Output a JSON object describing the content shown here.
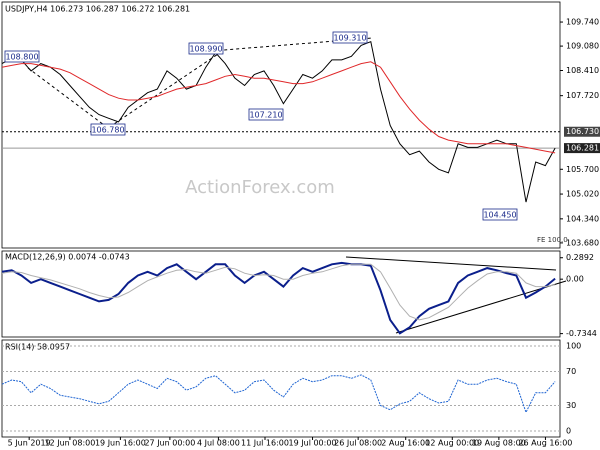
{
  "chart_data": [
    {
      "type": "line",
      "title": "USDJPY,H4 106.273 106.287 106.272 106.281",
      "x": [
        0,
        1,
        2,
        3,
        4,
        5,
        6,
        7,
        8,
        9,
        10,
        11,
        12,
        13,
        14,
        15,
        16,
        17,
        18,
        19,
        20,
        21,
        22,
        23,
        24,
        25,
        26,
        27,
        28,
        29,
        30,
        31,
        32,
        33,
        34,
        35,
        36,
        37,
        38,
        39,
        40,
        41,
        42,
        43,
        44,
        45,
        46,
        47,
        48,
        49,
        50,
        51,
        52,
        53,
        54,
        55,
        56,
        57
      ],
      "xlim": [
        0,
        57.5
      ],
      "series": [
        {
          "color": "#000000",
          "values": [
            108.6,
            108.75,
            108.7,
            108.4,
            108.6,
            108.5,
            108.3,
            108.0,
            107.7,
            107.4,
            107.2,
            107.1,
            107.0,
            107.4,
            107.6,
            107.8,
            107.9,
            108.4,
            108.2,
            107.9,
            108.0,
            108.5,
            108.9,
            108.6,
            108.2,
            108.0,
            108.3,
            108.4,
            108.0,
            107.5,
            107.9,
            108.3,
            108.2,
            108.4,
            108.7,
            108.7,
            108.8,
            109.1,
            109.2,
            107.9,
            106.9,
            106.4,
            106.1,
            106.2,
            105.9,
            105.7,
            105.6,
            106.4,
            106.3,
            106.3,
            106.4,
            106.5,
            106.4,
            106.4,
            104.8,
            105.9,
            105.8,
            106.281
          ]
        },
        {
          "color": "#e0282a",
          "values": [
            108.5,
            108.55,
            108.6,
            108.6,
            108.55,
            108.5,
            108.45,
            108.35,
            108.2,
            108.05,
            107.9,
            107.75,
            107.65,
            107.6,
            107.6,
            107.65,
            107.7,
            107.8,
            107.9,
            107.95,
            108.0,
            108.05,
            108.15,
            108.25,
            108.3,
            108.25,
            108.2,
            108.2,
            108.15,
            108.1,
            108.05,
            108.05,
            108.1,
            108.2,
            108.3,
            108.4,
            108.5,
            108.6,
            108.65,
            108.5,
            108.1,
            107.7,
            107.35,
            107.05,
            106.8,
            106.6,
            106.5,
            106.45,
            106.4,
            106.4,
            106.4,
            106.4,
            106.4,
            106.35,
            106.3,
            106.25,
            106.2,
            106.15
          ]
        }
      ],
      "ylim": [
        103.54,
        110.29
      ],
      "yticks": [
        {
          "value": 109.74,
          "label": "109.740"
        },
        {
          "value": 109.08,
          "label": "109.080"
        },
        {
          "value": 108.41,
          "label": "108.410"
        },
        {
          "value": 107.72,
          "label": "107.720"
        },
        {
          "value": 106.73,
          "label": "106.730",
          "style": "dotted"
        },
        {
          "value": 106.281,
          "label": "106.281",
          "style": "solid"
        },
        {
          "value": 105.7,
          "label": "105.700"
        },
        {
          "value": 105.02,
          "label": "105.020"
        },
        {
          "value": 104.34,
          "label": "104.340"
        },
        {
          "value": 103.68,
          "label": "103.680"
        }
      ],
      "annotations": [
        "108.800",
        "108.990",
        "109.310",
        "106.780",
        "107.210",
        "104.450",
        "ActionForex.com",
        "FE 100.0"
      ]
    },
    {
      "type": "line",
      "title": "MACD(12,26,9) 0.0074 -0.0743",
      "x": [
        0,
        1,
        2,
        3,
        4,
        5,
        6,
        7,
        8,
        9,
        10,
        11,
        12,
        13,
        14,
        15,
        16,
        17,
        18,
        19,
        20,
        21,
        22,
        23,
        24,
        25,
        26,
        27,
        28,
        29,
        30,
        31,
        32,
        33,
        34,
        35,
        36,
        37,
        38,
        39,
        40,
        41,
        42,
        43,
        44,
        45,
        46,
        47,
        48,
        49,
        50,
        51,
        52,
        53,
        54,
        55,
        56,
        57
      ],
      "xlim": [
        0,
        57.5
      ],
      "series": [
        {
          "color": "#0b1f8c",
          "values": [
            0.1,
            0.12,
            0.05,
            -0.05,
            0.0,
            -0.05,
            -0.1,
            -0.15,
            -0.2,
            -0.25,
            -0.3,
            -0.28,
            -0.2,
            -0.05,
            0.05,
            0.1,
            0.05,
            0.15,
            0.2,
            0.1,
            0.0,
            0.1,
            0.2,
            0.2,
            0.05,
            -0.05,
            0.05,
            0.1,
            0.0,
            -0.1,
            0.05,
            0.15,
            0.1,
            0.15,
            0.2,
            0.22,
            0.2,
            0.2,
            0.18,
            -0.15,
            -0.55,
            -0.73,
            -0.65,
            -0.5,
            -0.4,
            -0.35,
            -0.3,
            -0.05,
            0.05,
            0.1,
            0.15,
            0.12,
            0.08,
            0.05,
            -0.25,
            -0.18,
            -0.1,
            0.0074
          ]
        },
        {
          "color": "#b0b0b0",
          "values": [
            0.08,
            0.1,
            0.09,
            0.05,
            0.02,
            -0.01,
            -0.05,
            -0.09,
            -0.13,
            -0.18,
            -0.22,
            -0.25,
            -0.24,
            -0.18,
            -0.1,
            -0.02,
            0.03,
            0.08,
            0.12,
            0.13,
            0.1,
            0.08,
            0.12,
            0.16,
            0.14,
            0.08,
            0.05,
            0.06,
            0.05,
            0.0,
            0.0,
            0.05,
            0.08,
            0.1,
            0.14,
            0.18,
            0.2,
            0.2,
            0.2,
            0.1,
            -0.12,
            -0.35,
            -0.5,
            -0.55,
            -0.52,
            -0.45,
            -0.38,
            -0.25,
            -0.12,
            -0.02,
            0.07,
            0.1,
            0.1,
            0.08,
            -0.05,
            -0.1,
            -0.1,
            -0.0743
          ]
        }
      ],
      "ylim": [
        -0.78,
        0.38
      ],
      "yticks": [
        0.2892,
        {
          "value": 0,
          "label": "0.00"
        },
        -0.7344
      ]
    },
    {
      "type": "line",
      "title": "RSI(14) 58.0957",
      "x": [
        0,
        1,
        2,
        3,
        4,
        5,
        6,
        7,
        8,
        9,
        10,
        11,
        12,
        13,
        14,
        15,
        16,
        17,
        18,
        19,
        20,
        21,
        22,
        23,
        24,
        25,
        26,
        27,
        28,
        29,
        30,
        31,
        32,
        33,
        34,
        35,
        36,
        37,
        38,
        39,
        40,
        41,
        42,
        43,
        44,
        45,
        46,
        47,
        48,
        49,
        50,
        51,
        52,
        53,
        54,
        55,
        56,
        57
      ],
      "xlim": [
        0,
        57.5
      ],
      "series": [
        {
          "color": "#1e64d2",
          "values": [
            55,
            60,
            58,
            45,
            55,
            50,
            42,
            40,
            38,
            35,
            32,
            35,
            45,
            55,
            60,
            55,
            50,
            62,
            58,
            48,
            52,
            62,
            65,
            55,
            45,
            48,
            58,
            60,
            48,
            40,
            55,
            62,
            58,
            60,
            65,
            65,
            62,
            66,
            60,
            30,
            25,
            32,
            35,
            45,
            38,
            33,
            35,
            60,
            55,
            55,
            60,
            62,
            58,
            55,
            22,
            45,
            45,
            58.0957
          ]
        }
      ],
      "ylim": [
        -7,
        107
      ],
      "yticks": [
        100,
        70,
        30,
        0
      ],
      "xticks": [
        {
          "value": 2.8,
          "label": "5 Jun 2019"
        },
        {
          "value": 7,
          "label": "12 Jun 08:00"
        },
        {
          "value": 12.2,
          "label": "19 Jun 16:00"
        },
        {
          "value": 17.3,
          "label": "27 Jun 00:00"
        },
        {
          "value": 22.3,
          "label": "4 Jul 08:00"
        },
        {
          "value": 27.1,
          "label": "11 Jul 16:00"
        },
        {
          "value": 32,
          "label": "19 Jul 00:00"
        },
        {
          "value": 36.7,
          "label": "26 Jul 08:00"
        },
        {
          "value": 41.6,
          "label": "2 Aug 16:00"
        },
        {
          "value": 46.4,
          "label": "12 Aug 00:00"
        },
        {
          "value": 51.2,
          "label": "19 Aug 08:00"
        },
        {
          "value": 56,
          "label": "26 Aug 16:00"
        }
      ]
    }
  ]
}
